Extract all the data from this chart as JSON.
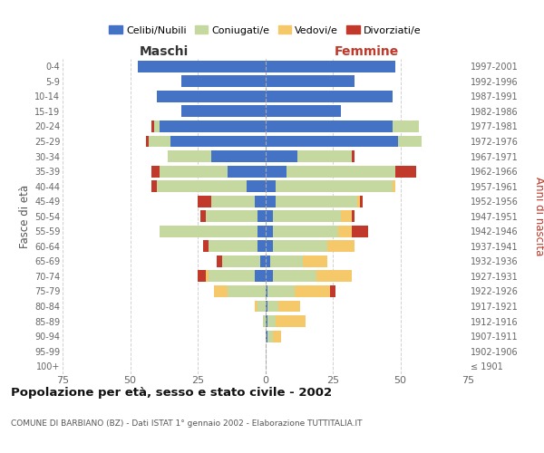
{
  "age_groups": [
    "100+",
    "95-99",
    "90-94",
    "85-89",
    "80-84",
    "75-79",
    "70-74",
    "65-69",
    "60-64",
    "55-59",
    "50-54",
    "45-49",
    "40-44",
    "35-39",
    "30-34",
    "25-29",
    "20-24",
    "15-19",
    "10-14",
    "5-9",
    "0-4"
  ],
  "birth_years": [
    "≤ 1901",
    "1902-1906",
    "1907-1911",
    "1912-1916",
    "1917-1921",
    "1922-1926",
    "1927-1931",
    "1932-1936",
    "1937-1941",
    "1942-1946",
    "1947-1951",
    "1952-1956",
    "1957-1961",
    "1962-1966",
    "1967-1971",
    "1972-1976",
    "1977-1981",
    "1982-1986",
    "1987-1991",
    "1992-1996",
    "1997-2001"
  ],
  "male_celibi": [
    0,
    0,
    0,
    0,
    0,
    0,
    4,
    2,
    3,
    3,
    3,
    4,
    7,
    14,
    20,
    35,
    39,
    31,
    40,
    31,
    47
  ],
  "male_coniugati": [
    0,
    0,
    0,
    1,
    3,
    14,
    17,
    14,
    18,
    36,
    19,
    16,
    33,
    25,
    16,
    8,
    2,
    0,
    0,
    0,
    0
  ],
  "male_vedovi": [
    0,
    0,
    0,
    0,
    1,
    5,
    1,
    0,
    0,
    0,
    0,
    0,
    0,
    0,
    0,
    0,
    0,
    0,
    0,
    0,
    0
  ],
  "male_divorziati": [
    0,
    0,
    0,
    0,
    0,
    0,
    3,
    2,
    2,
    0,
    2,
    5,
    2,
    3,
    0,
    1,
    1,
    0,
    0,
    0,
    0
  ],
  "female_nubili": [
    0,
    0,
    1,
    1,
    1,
    1,
    3,
    2,
    3,
    3,
    3,
    4,
    4,
    8,
    12,
    49,
    47,
    28,
    47,
    33,
    48
  ],
  "female_coniugate": [
    0,
    0,
    2,
    3,
    4,
    10,
    16,
    12,
    20,
    24,
    25,
    30,
    43,
    40,
    20,
    9,
    10,
    0,
    0,
    0,
    0
  ],
  "female_vedove": [
    0,
    0,
    3,
    11,
    8,
    13,
    13,
    9,
    10,
    5,
    4,
    1,
    1,
    0,
    0,
    0,
    0,
    0,
    0,
    0,
    0
  ],
  "female_divorziate": [
    0,
    0,
    0,
    0,
    0,
    2,
    0,
    0,
    0,
    6,
    1,
    1,
    0,
    8,
    1,
    0,
    0,
    0,
    0,
    0,
    0
  ],
  "color_celibi": "#4472C4",
  "color_coniugati": "#C5D8A0",
  "color_vedovi": "#F5C96A",
  "color_divorziati": "#C0392B",
  "xlim": 75,
  "title": "Popolazione per età, sesso e stato civile - 2002",
  "subtitle": "COMUNE DI BARBIANO (BZ) - Dati ISTAT 1° gennaio 2002 - Elaborazione TUTTITALIA.IT",
  "ylabel_left": "Fasce di età",
  "ylabel_right": "Anni di nascita",
  "label_maschi": "Maschi",
  "label_femmine": "Femmine",
  "legend_labels": [
    "Celibi/Nubili",
    "Coniugati/e",
    "Vedovi/e",
    "Divorziati/e"
  ]
}
